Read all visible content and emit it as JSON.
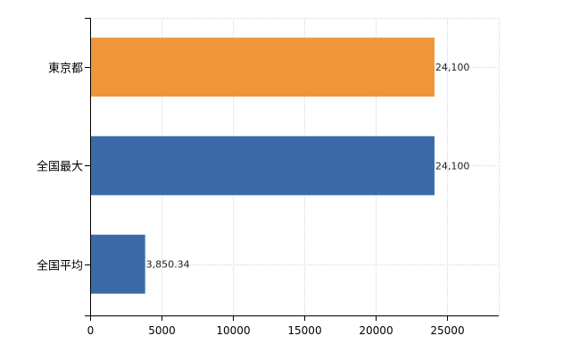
{
  "chart_data": {
    "type": "bar",
    "orientation": "horizontal",
    "categories": [
      "東京都",
      "全国最大",
      "全国平均"
    ],
    "values": [
      24100,
      24100,
      3850.34
    ],
    "value_labels": [
      "24,100",
      "24,100",
      "3,850.34"
    ],
    "bar_colors": [
      "#f0963a",
      "#3a6aaa",
      "#3a6aaa"
    ],
    "xlim": [
      0,
      28600
    ],
    "xticks": [
      0,
      5000,
      10000,
      15000,
      20000,
      25000
    ],
    "xtick_labels": [
      "0",
      "5000",
      "10000",
      "15000",
      "20000",
      "25000"
    ],
    "grid": true,
    "legend": "none"
  }
}
